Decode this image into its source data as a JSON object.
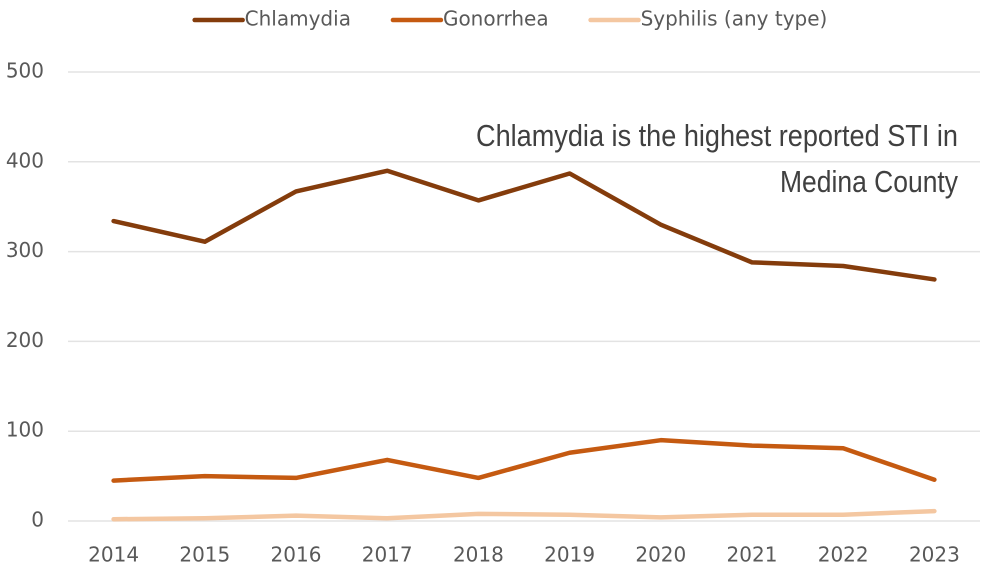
{
  "chart_data": {
    "type": "line",
    "categories": [
      "2014",
      "2015",
      "2016",
      "2017",
      "2018",
      "2019",
      "2020",
      "2021",
      "2022",
      "2023"
    ],
    "series": [
      {
        "name": "Chlamydia",
        "color": "#843c0c",
        "values": [
          334,
          311,
          367,
          390,
          357,
          387,
          330,
          288,
          284,
          269
        ]
      },
      {
        "name": "Gonorrhea",
        "color": "#c55a11",
        "values": [
          45,
          50,
          48,
          68,
          48,
          76,
          90,
          84,
          81,
          46
        ]
      },
      {
        "name": "Syphilis (any type)",
        "color": "#f4c7a1",
        "values": [
          2,
          3,
          6,
          3,
          8,
          7,
          4,
          7,
          7,
          11
        ]
      }
    ],
    "annotation": [
      "Chlamydia is the highest reported STI in",
      "Medina County"
    ],
    "ylim": [
      0,
      500
    ],
    "yticks": [
      0,
      100,
      200,
      300,
      400,
      500
    ],
    "grid": true,
    "legend": "top"
  }
}
